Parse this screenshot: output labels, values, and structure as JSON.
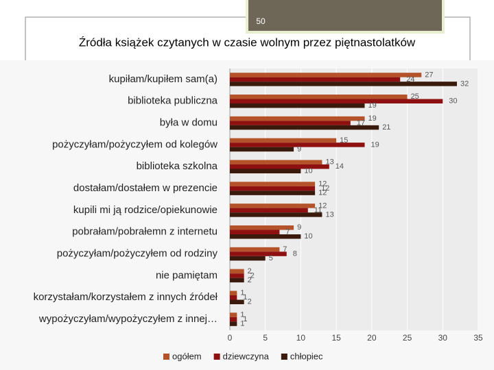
{
  "page_number": "50",
  "chart_data": {
    "type": "bar",
    "orientation": "horizontal",
    "title": "Źródła książek czytanych w czasie wolnym przez piętnastolatków",
    "categories": [
      "kupiłam/kupiłem sam(a)",
      "biblioteka publiczna",
      "była w domu",
      "pożyczyłam/pożyczyłem od kolegów",
      "biblioteka szkolna",
      "dostałam/dostałem w prezencie",
      "kupili mi ją rodzice/opiekunowie",
      "pobrałam/pobrałemn z internetu",
      "pożyczyłam/pożyczyłem od rodziny",
      "nie pamiętam",
      "korzystałam/korzystałem z innych źródeł",
      "wypożyczyłam/wypożyczyłem z innej…"
    ],
    "series": [
      {
        "name": "ogółem",
        "color": "#b4532a",
        "values": [
          27,
          25,
          19,
          15,
          13,
          12,
          12,
          9,
          7,
          2,
          1,
          1
        ]
      },
      {
        "name": "dziewczyna",
        "color": "#8e1010",
        "values": [
          24,
          30,
          17,
          19,
          14,
          12,
          11,
          7,
          8,
          2,
          1,
          1
        ]
      },
      {
        "name": "chłopiec",
        "color": "#3a1a0d",
        "values": [
          32,
          19,
          21,
          9,
          10,
          12,
          13,
          10,
          5,
          2,
          2,
          1
        ]
      }
    ],
    "xlim": [
      0,
      35
    ],
    "xticks": [
      0,
      5,
      10,
      15,
      20,
      25,
      30,
      35
    ],
    "grid": true,
    "legend": "bottom"
  }
}
